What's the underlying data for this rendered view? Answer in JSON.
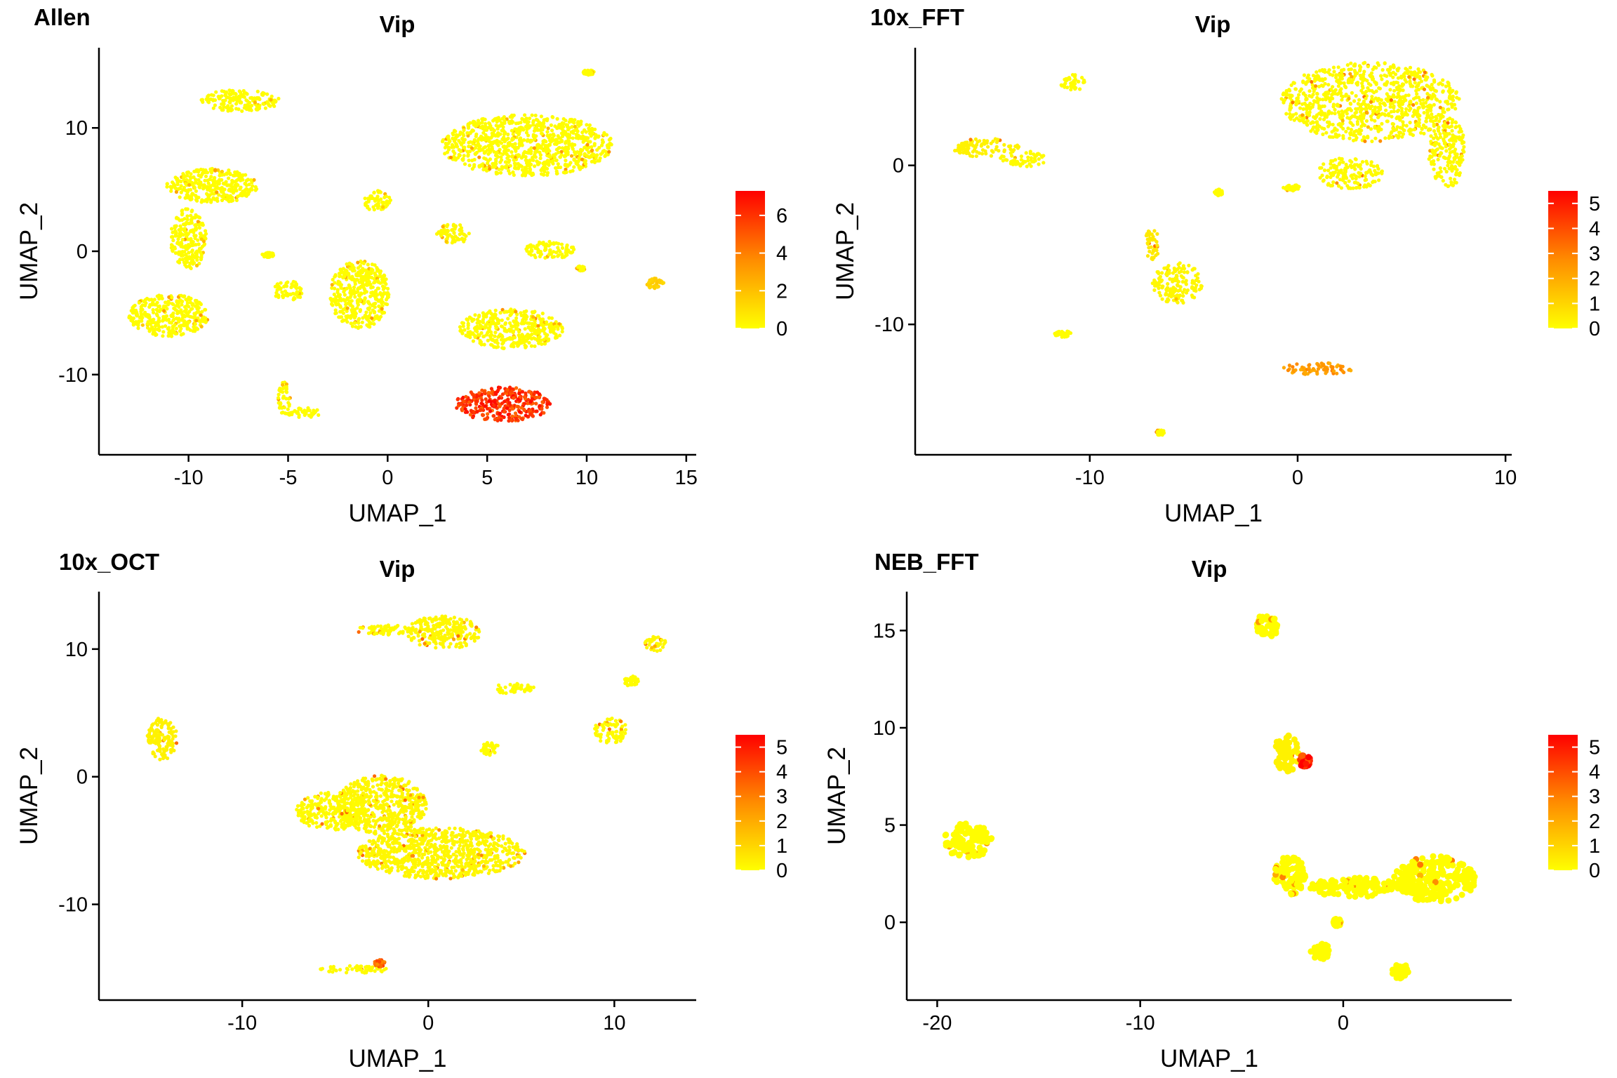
{
  "chart_data": [
    {
      "type": "scatter",
      "panel_label": "Allen",
      "title": "Vip",
      "xlabel": "UMAP_1",
      "ylabel": "UMAP_2",
      "xlim": [
        -14.5,
        15.5
      ],
      "ylim": [
        -16.5,
        16.5
      ],
      "xticks": [
        -10,
        -5,
        0,
        5,
        10,
        15
      ],
      "xtick_labels": [
        "-10",
        "-5",
        "0",
        "5",
        "10",
        "15"
      ],
      "yticks": [
        -10,
        0,
        10
      ],
      "ytick_labels": [
        "-10",
        "0",
        "10"
      ],
      "grid": false,
      "legend_placement": "right",
      "color_scale": {
        "low": "#ffff00",
        "mid": "#ff8c00",
        "high": "#ff0000",
        "min": 0,
        "max": 7.3
      },
      "legend_ticks": [
        0,
        2,
        4,
        6
      ],
      "legend_tick_labels": [
        "0",
        "2",
        "4",
        "6"
      ],
      "clusters": [
        {
          "x": -7.4,
          "y": 12.2,
          "rx": 2.0,
          "ry": 0.9,
          "value": 0.05
        },
        {
          "x": -8.8,
          "y": 5.3,
          "rx": 2.3,
          "ry": 1.4,
          "value": 0.05
        },
        {
          "x": -10.0,
          "y": 1.0,
          "rx": 0.9,
          "ry": 2.5,
          "value": 0.05
        },
        {
          "x": -11.0,
          "y": -5.2,
          "rx": 2.0,
          "ry": 1.7,
          "value": 0.05
        },
        {
          "x": -5.0,
          "y": -3.2,
          "rx": 0.8,
          "ry": 0.8,
          "value": 0.05
        },
        {
          "x": -1.4,
          "y": -3.5,
          "rx": 1.5,
          "ry": 2.8,
          "value": 0.05
        },
        {
          "x": -0.5,
          "y": 4.1,
          "rx": 0.7,
          "ry": 0.9,
          "value": 0.05
        },
        {
          "x": 7.0,
          "y": 8.6,
          "rx": 4.3,
          "ry": 2.5,
          "value": 0.05
        },
        {
          "x": 8.1,
          "y": 0.1,
          "rx": 1.3,
          "ry": 0.7,
          "value": 0.05
        },
        {
          "x": 6.2,
          "y": -6.3,
          "rx": 2.6,
          "ry": 1.6,
          "value": 0.1
        },
        {
          "x": 5.8,
          "y": -12.4,
          "rx": 2.4,
          "ry": 1.4,
          "value": 6.0
        },
        {
          "x": 3.3,
          "y": 1.4,
          "rx": 0.9,
          "ry": 0.8,
          "value": 0.2
        },
        {
          "x": 13.4,
          "y": -2.6,
          "rx": 0.5,
          "ry": 0.4,
          "value": 1.5
        },
        {
          "x": 10.1,
          "y": 14.5,
          "rx": 0.3,
          "ry": 0.2,
          "value": 0.05
        },
        {
          "x": -5.2,
          "y": -11.9,
          "rx": 0.3,
          "ry": 1.3,
          "value": 0.05
        },
        {
          "x": -4.2,
          "y": -13.1,
          "rx": 0.9,
          "ry": 0.4,
          "value": 0.05
        },
        {
          "x": -6.0,
          "y": -0.3,
          "rx": 0.3,
          "ry": 0.2,
          "value": 0.05
        },
        {
          "x": 9.7,
          "y": -1.4,
          "rx": 0.2,
          "ry": 0.2,
          "value": 0.05
        }
      ]
    },
    {
      "type": "scatter",
      "panel_label": "10x_FFT",
      "title": "Vip",
      "xlabel": "UMAP_1",
      "ylabel": "UMAP_2",
      "xlim": [
        -18.4,
        10.3
      ],
      "ylim": [
        -18.2,
        7.4
      ],
      "xticks": [
        -10,
        0,
        10
      ],
      "xtick_labels": [
        "-10",
        "0",
        "10"
      ],
      "yticks": [
        -10,
        0
      ],
      "ytick_labels": [
        "-10",
        "0"
      ],
      "grid": false,
      "legend_placement": "right",
      "color_scale": {
        "low": "#ffff00",
        "mid": "#ff8c00",
        "high": "#ff0000",
        "min": 0,
        "max": 5.5
      },
      "legend_ticks": [
        0,
        1,
        2,
        3,
        4,
        5
      ],
      "legend_tick_labels": [
        "0",
        "1",
        "2",
        "3",
        "4",
        "5"
      ],
      "clusters": [
        {
          "x": 3.5,
          "y": 4.0,
          "rx": 4.3,
          "ry": 2.5,
          "value": 0.1
        },
        {
          "x": 2.5,
          "y": -0.5,
          "rx": 1.6,
          "ry": 1.0,
          "value": 0.1
        },
        {
          "x": 7.2,
          "y": 0.8,
          "rx": 0.9,
          "ry": 2.2,
          "value": 0.1
        },
        {
          "x": -15.0,
          "y": 1.1,
          "rx": 1.6,
          "ry": 0.6,
          "value": 0.3
        },
        {
          "x": -13.2,
          "y": 0.4,
          "rx": 1.1,
          "ry": 0.5,
          "value": 0.1
        },
        {
          "x": -10.8,
          "y": 5.2,
          "rx": 0.6,
          "ry": 0.5,
          "value": 0.05
        },
        {
          "x": -5.8,
          "y": -7.4,
          "rx": 1.2,
          "ry": 1.3,
          "value": 0.2
        },
        {
          "x": -7.0,
          "y": -5.0,
          "rx": 0.4,
          "ry": 1.0,
          "value": 0.5
        },
        {
          "x": 1.0,
          "y": -12.8,
          "rx": 1.7,
          "ry": 0.4,
          "value": 2.5
        },
        {
          "x": -11.3,
          "y": -10.6,
          "rx": 0.4,
          "ry": 0.2,
          "value": 0.05
        },
        {
          "x": -6.6,
          "y": -16.8,
          "rx": 0.2,
          "ry": 0.2,
          "value": 0.05
        },
        {
          "x": -0.3,
          "y": -1.4,
          "rx": 0.4,
          "ry": 0.2,
          "value": 0.05
        },
        {
          "x": -3.8,
          "y": -1.7,
          "rx": 0.2,
          "ry": 0.2,
          "value": 0.05
        }
      ]
    },
    {
      "type": "scatter",
      "panel_label": "10x_OCT",
      "title": "Vip",
      "xlabel": "UMAP_1",
      "ylabel": "UMAP_2",
      "xlim": [
        -17.7,
        14.4
      ],
      "ylim": [
        -17.5,
        14.5
      ],
      "xticks": [
        -10,
        0,
        10
      ],
      "xtick_labels": [
        "-10",
        "0",
        "10"
      ],
      "yticks": [
        -10,
        0,
        10
      ],
      "ytick_labels": [
        "-10",
        "0",
        "10"
      ],
      "grid": false,
      "legend_placement": "right",
      "color_scale": {
        "low": "#ffff00",
        "mid": "#ff8c00",
        "high": "#ff0000",
        "min": 0,
        "max": 5.5
      },
      "legend_ticks": [
        0,
        1,
        2,
        3,
        4,
        5
      ],
      "legend_tick_labels": [
        "0",
        "1",
        "2",
        "3",
        "4",
        "5"
      ],
      "clusters": [
        {
          "x": 0.8,
          "y": 11.3,
          "rx": 2.0,
          "ry": 1.3,
          "value": 0.2
        },
        {
          "x": -2.4,
          "y": 11.5,
          "rx": 1.5,
          "ry": 0.4,
          "value": 0.1
        },
        {
          "x": -14.3,
          "y": 3.0,
          "rx": 0.8,
          "ry": 1.7,
          "value": 0.3
        },
        {
          "x": -2.5,
          "y": -2.2,
          "rx": 2.4,
          "ry": 2.3,
          "value": 0.2
        },
        {
          "x": -5.2,
          "y": -2.7,
          "rx": 1.9,
          "ry": 1.5,
          "value": 0.1
        },
        {
          "x": 0.7,
          "y": -6.0,
          "rx": 4.5,
          "ry": 2.0,
          "value": 0.2
        },
        {
          "x": 4.6,
          "y": 6.9,
          "rx": 1.1,
          "ry": 0.4,
          "value": 0.05
        },
        {
          "x": 3.3,
          "y": 2.2,
          "rx": 0.5,
          "ry": 0.5,
          "value": 0.05
        },
        {
          "x": 9.8,
          "y": 3.6,
          "rx": 0.9,
          "ry": 1.0,
          "value": 0.1
        },
        {
          "x": 10.9,
          "y": 7.5,
          "rx": 0.4,
          "ry": 0.4,
          "value": 0.05
        },
        {
          "x": 12.2,
          "y": 10.4,
          "rx": 0.6,
          "ry": 0.6,
          "value": 0.2
        },
        {
          "x": -4.0,
          "y": -15.1,
          "rx": 1.8,
          "ry": 0.3,
          "value": 0.1
        },
        {
          "x": -2.6,
          "y": -14.6,
          "rx": 0.3,
          "ry": 0.3,
          "value": 3.5
        }
      ]
    },
    {
      "type": "scatter",
      "panel_label": "NEB_FFT",
      "title": "Vip",
      "xlabel": "UMAP_1",
      "ylabel": "UMAP_2",
      "xlim": [
        -21.5,
        8.3
      ],
      "ylim": [
        -4.0,
        17.0
      ],
      "xticks": [
        -20,
        -10,
        0
      ],
      "xtick_labels": [
        "-20",
        "-10",
        "0"
      ],
      "yticks": [
        0,
        5,
        10,
        15
      ],
      "ytick_labels": [
        "0",
        "5",
        "10",
        "15"
      ],
      "grid": false,
      "legend_placement": "right",
      "color_scale": {
        "low": "#ffff00",
        "mid": "#ff8c00",
        "high": "#ff0000",
        "min": 0,
        "max": 5.5
      },
      "legend_ticks": [
        0,
        1,
        2,
        3,
        4,
        5
      ],
      "legend_tick_labels": [
        "0",
        "1",
        "2",
        "3",
        "4",
        "5"
      ],
      "clusters": [
        {
          "x": -3.8,
          "y": 15.2,
          "rx": 0.6,
          "ry": 0.6,
          "value": 0.05
        },
        {
          "x": -18.5,
          "y": 4.2,
          "rx": 1.2,
          "ry": 0.9,
          "value": 0.05
        },
        {
          "x": -2.8,
          "y": 8.7,
          "rx": 0.6,
          "ry": 1.0,
          "value": 0.3
        },
        {
          "x": -1.9,
          "y": 8.3,
          "rx": 0.3,
          "ry": 0.3,
          "value": 4.8
        },
        {
          "x": -2.6,
          "y": 2.4,
          "rx": 0.8,
          "ry": 1.0,
          "value": 0.05
        },
        {
          "x": 0.5,
          "y": 1.8,
          "rx": 2.3,
          "ry": 0.5,
          "value": 0.05
        },
        {
          "x": 4.5,
          "y": 2.2,
          "rx": 2.0,
          "ry": 1.2,
          "value": 0.05
        },
        {
          "x": -1.1,
          "y": -1.5,
          "rx": 0.5,
          "ry": 0.4,
          "value": 0.05
        },
        {
          "x": 2.8,
          "y": -2.5,
          "rx": 0.4,
          "ry": 0.4,
          "value": 0.05
        },
        {
          "x": -0.3,
          "y": 0.0,
          "rx": 0.2,
          "ry": 0.2,
          "value": 0.05
        }
      ]
    }
  ]
}
